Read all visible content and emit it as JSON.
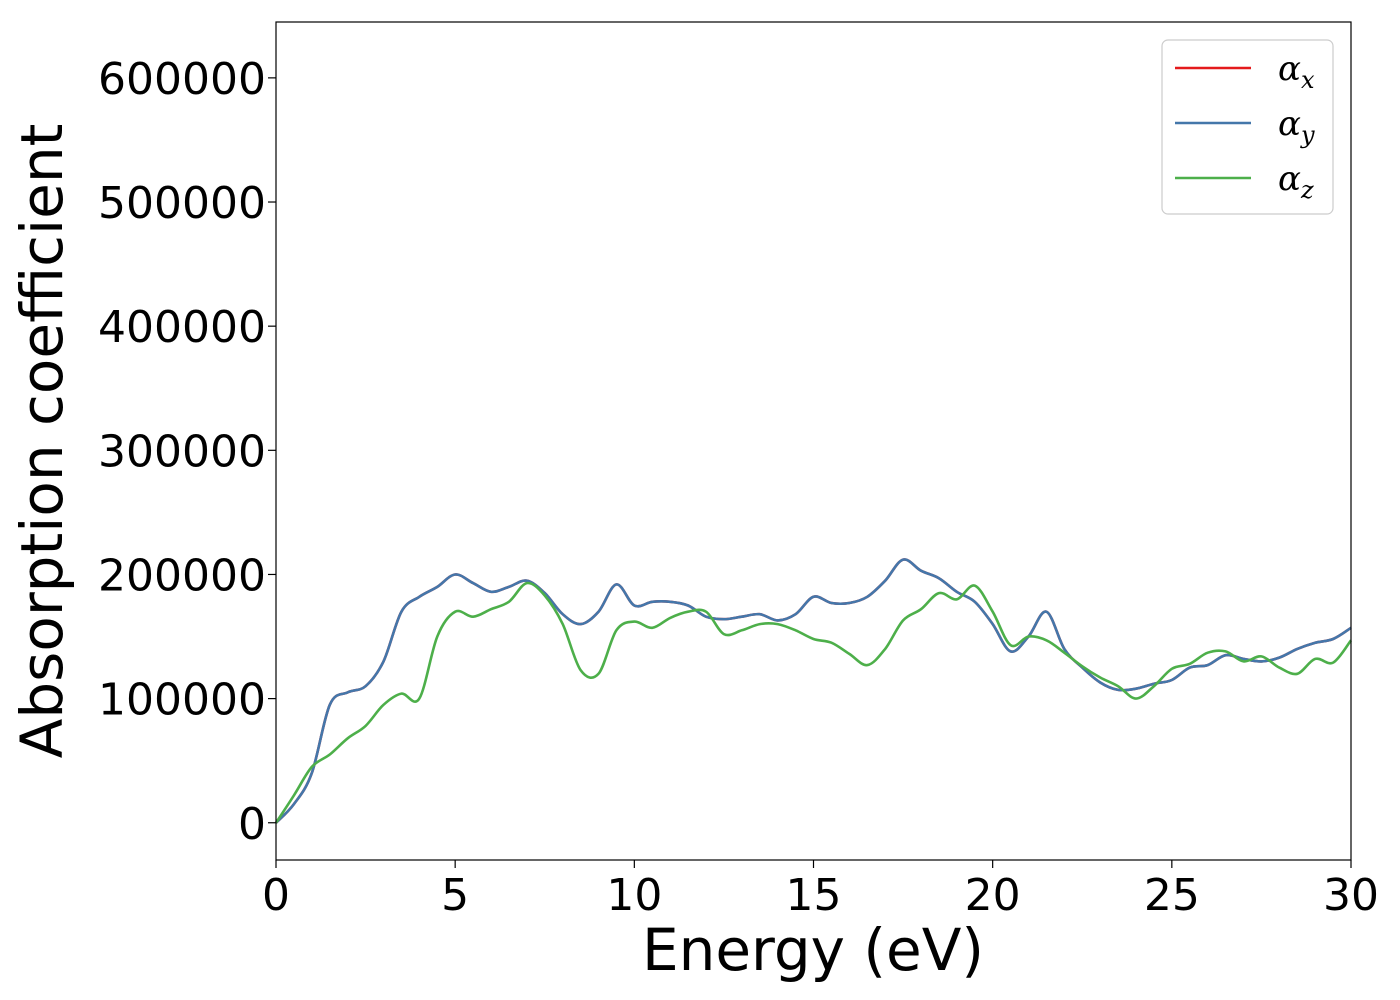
{
  "chart_data": {
    "type": "line",
    "xlabel": "Energy (eV)",
    "ylabel": "Absorption coefficient",
    "xlim": [
      0,
      30
    ],
    "ylim": [
      -30000,
      645000
    ],
    "xticks": [
      0,
      5,
      10,
      15,
      20,
      25,
      30
    ],
    "xtick_labels": [
      "0",
      "5",
      "10",
      "15",
      "20",
      "25",
      "30"
    ],
    "yticks": [
      0,
      100000,
      200000,
      300000,
      400000,
      500000,
      600000
    ],
    "ytick_labels": [
      "0",
      "100000",
      "200000",
      "300000",
      "400000",
      "500000",
      "600000"
    ],
    "grid": false,
    "legend_position": "top-right",
    "series": [
      {
        "name": "α_x",
        "legend_symbol": "α",
        "legend_sub": "x",
        "color": "#e41a1c",
        "x": [
          0,
          0.5,
          1.0,
          1.5,
          2.0,
          2.5,
          3.0,
          3.5,
          4.0,
          4.5,
          5.0,
          5.5,
          6.0,
          6.5,
          7.0,
          7.5,
          8.0,
          8.5,
          9.0,
          9.5,
          10.0,
          10.5,
          11.0,
          11.5,
          12.0,
          12.5,
          13.0,
          13.5,
          14.0,
          14.5,
          15.0,
          15.5,
          16.0,
          16.5,
          17.0,
          17.5,
          18.0,
          18.5,
          19.0,
          19.5,
          20.0,
          20.5,
          21.0,
          21.5,
          22.0,
          22.5,
          23.0,
          23.5,
          24.0,
          24.5,
          25.0,
          25.5,
          26.0,
          26.5,
          27.0,
          27.5,
          28.0,
          28.5,
          29.0,
          29.5,
          30.0
        ],
        "y": [
          0,
          15000,
          40000,
          95000,
          105000,
          110000,
          130000,
          170000,
          182000,
          190000,
          200000,
          193000,
          186000,
          190000,
          195000,
          185000,
          168000,
          160000,
          170000,
          192000,
          175000,
          178000,
          178000,
          175000,
          166000,
          164000,
          166000,
          168000,
          163000,
          168000,
          182000,
          177000,
          177000,
          182000,
          195000,
          212000,
          203000,
          197000,
          186000,
          178000,
          160000,
          138000,
          150000,
          170000,
          140000,
          125000,
          113000,
          107000,
          108000,
          112000,
          115000,
          125000,
          127000,
          135000,
          132000,
          130000,
          133000,
          140000,
          145000,
          148000,
          157000
        ]
      },
      {
        "name": "α_y",
        "legend_symbol": "α",
        "legend_sub": "y",
        "color": "#4477aa",
        "x": [
          0,
          0.5,
          1.0,
          1.5,
          2.0,
          2.5,
          3.0,
          3.5,
          4.0,
          4.5,
          5.0,
          5.5,
          6.0,
          6.5,
          7.0,
          7.5,
          8.0,
          8.5,
          9.0,
          9.5,
          10.0,
          10.5,
          11.0,
          11.5,
          12.0,
          12.5,
          13.0,
          13.5,
          14.0,
          14.5,
          15.0,
          15.5,
          16.0,
          16.5,
          17.0,
          17.5,
          18.0,
          18.5,
          19.0,
          19.5,
          20.0,
          20.5,
          21.0,
          21.5,
          22.0,
          22.5,
          23.0,
          23.5,
          24.0,
          24.5,
          25.0,
          25.5,
          26.0,
          26.5,
          27.0,
          27.5,
          28.0,
          28.5,
          29.0,
          29.5,
          30.0
        ],
        "y": [
          0,
          15000,
          40000,
          95000,
          105000,
          110000,
          130000,
          170000,
          182000,
          190000,
          200000,
          193000,
          186000,
          190000,
          195000,
          185000,
          168000,
          160000,
          170000,
          192000,
          175000,
          178000,
          178000,
          175000,
          166000,
          164000,
          166000,
          168000,
          163000,
          168000,
          182000,
          177000,
          177000,
          182000,
          195000,
          212000,
          203000,
          197000,
          186000,
          178000,
          160000,
          138000,
          150000,
          170000,
          140000,
          125000,
          113000,
          107000,
          108000,
          112000,
          115000,
          125000,
          127000,
          135000,
          132000,
          130000,
          133000,
          140000,
          145000,
          148000,
          157000
        ]
      },
      {
        "name": "α_z",
        "legend_symbol": "α",
        "legend_sub": "z",
        "color": "#4daf4a",
        "x": [
          0,
          0.5,
          1.0,
          1.5,
          2.0,
          2.5,
          3.0,
          3.5,
          4.0,
          4.5,
          5.0,
          5.5,
          6.0,
          6.5,
          7.0,
          7.5,
          8.0,
          8.5,
          9.0,
          9.5,
          10.0,
          10.5,
          11.0,
          11.5,
          12.0,
          12.5,
          13.0,
          13.5,
          14.0,
          14.5,
          15.0,
          15.5,
          16.0,
          16.5,
          17.0,
          17.5,
          18.0,
          18.5,
          19.0,
          19.5,
          20.0,
          20.5,
          21.0,
          21.5,
          22.0,
          22.5,
          23.0,
          23.5,
          24.0,
          24.5,
          25.0,
          25.5,
          26.0,
          26.5,
          27.0,
          27.5,
          28.0,
          28.5,
          29.0,
          29.5,
          30.0
        ],
        "y": [
          0,
          22000,
          45000,
          55000,
          68000,
          78000,
          95000,
          104000,
          100000,
          150000,
          170000,
          166000,
          172000,
          178000,
          193000,
          183000,
          160000,
          123000,
          120000,
          155000,
          162000,
          157000,
          165000,
          170000,
          170000,
          152000,
          155000,
          160000,
          160000,
          155000,
          148000,
          145000,
          136000,
          127000,
          140000,
          163000,
          172000,
          185000,
          180000,
          191000,
          170000,
          143000,
          150000,
          147000,
          137000,
          126000,
          117000,
          110000,
          100000,
          110000,
          124000,
          128000,
          137000,
          138000,
          130000,
          134000,
          125000,
          120000,
          132000,
          129000,
          147000
        ]
      }
    ]
  }
}
